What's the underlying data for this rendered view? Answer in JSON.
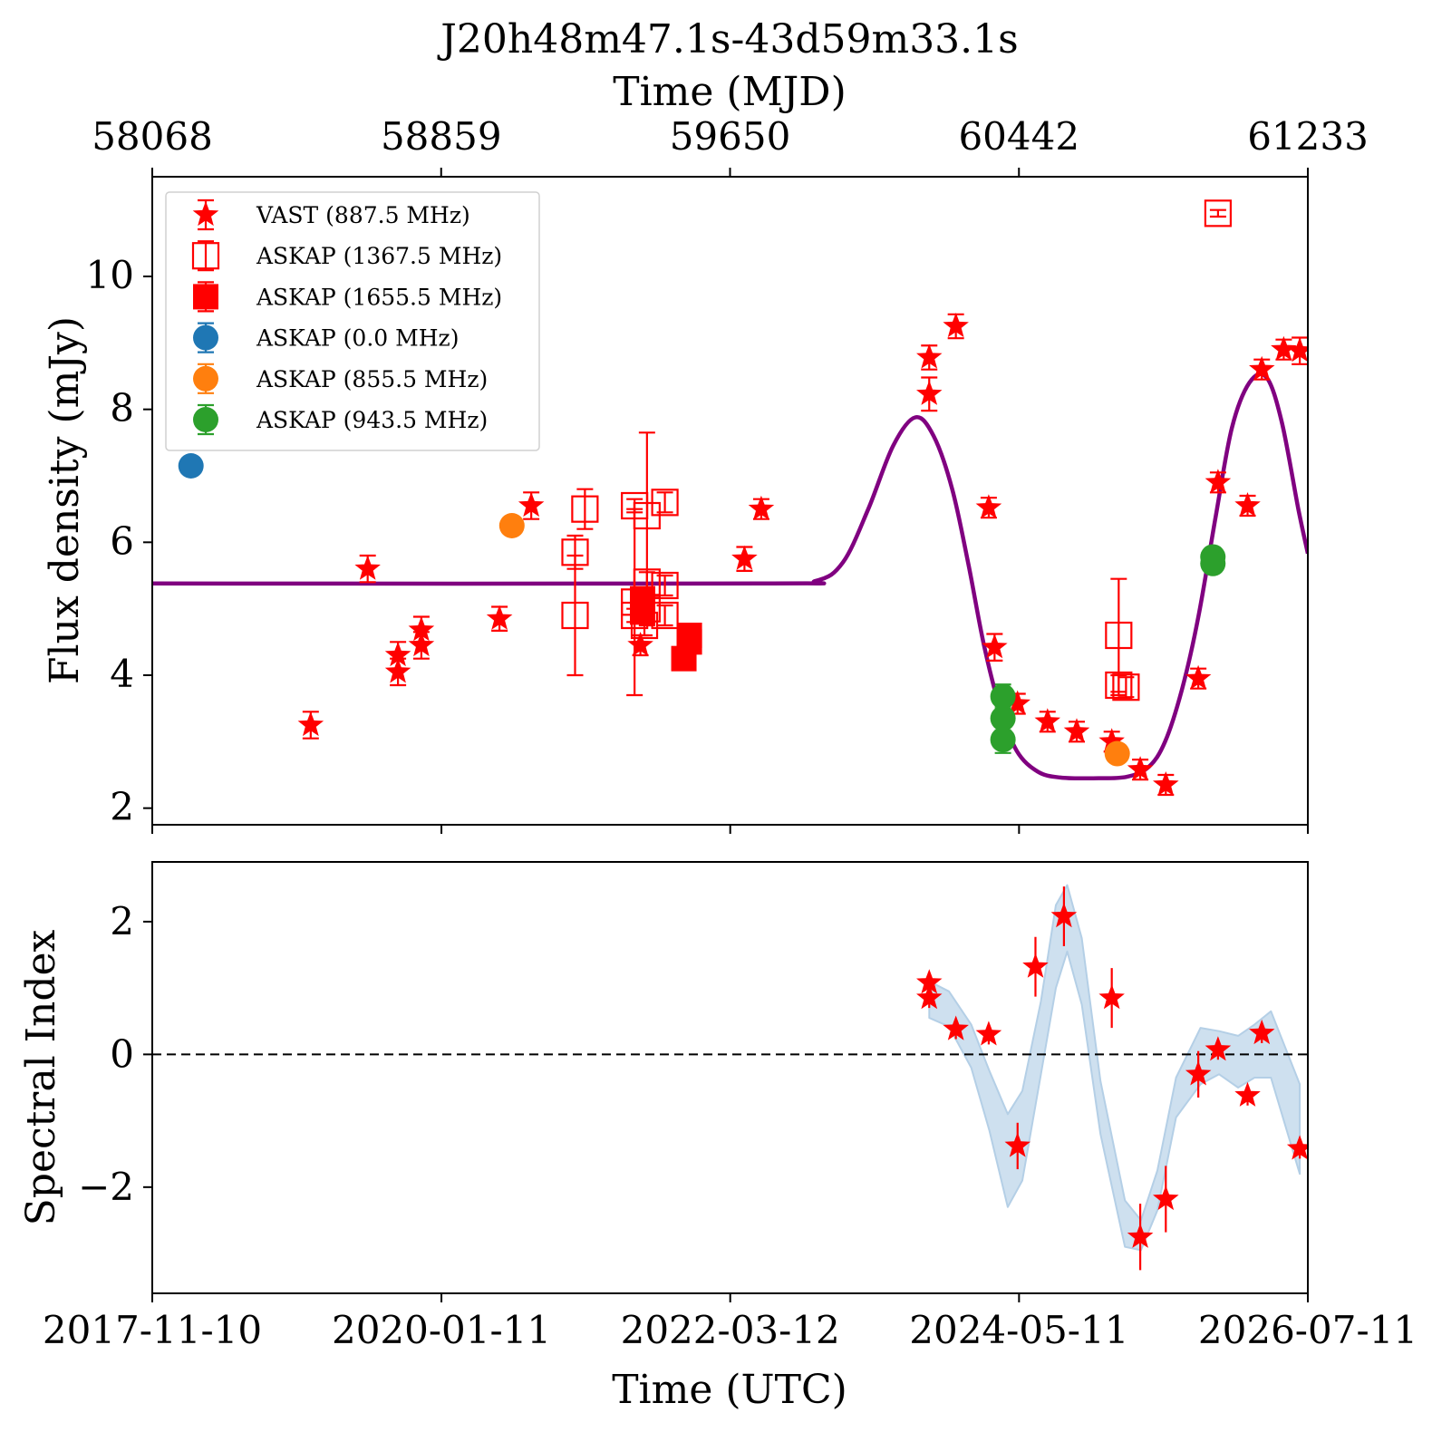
{
  "chart_data": [
    {
      "type": "scatter",
      "title": "J20h48m47.1s-43d59m33.1s",
      "top_axis_label": "Time (MJD)",
      "top_ticks": [
        "58068",
        "58859",
        "59650",
        "60442",
        "61233"
      ],
      "ylabel": "Flux density (mJy)",
      "xlim": [
        "2017-11-10",
        "2026-07-11"
      ],
      "ylim": [
        1.75,
        11.5
      ],
      "yticks": [
        2,
        4,
        6,
        8,
        10
      ],
      "grid": false,
      "legend_position": "upper-left",
      "series": [
        {
          "name": "VAST (887.5 MHz)",
          "marker": "star",
          "color": "#ff0000",
          "points": [
            {
              "x": "2019-01-18",
              "y": 3.25,
              "err": 0.2
            },
            {
              "x": "2019-06-23",
              "y": 5.6,
              "err": 0.2
            },
            {
              "x": "2019-09-14",
              "y": 4.3,
              "err": 0.2
            },
            {
              "x": "2019-09-14",
              "y": 4.05,
              "err": 0.2
            },
            {
              "x": "2019-11-17",
              "y": 4.68,
              "err": 0.2
            },
            {
              "x": "2019-11-17",
              "y": 4.45,
              "err": 0.2
            },
            {
              "x": "2020-06-18",
              "y": 4.85,
              "err": 0.18
            },
            {
              "x": "2020-09-13",
              "y": 6.55,
              "err": 0.2
            },
            {
              "x": "2021-07-09",
              "y": 4.45,
              "err": 0.15
            },
            {
              "x": "2022-04-20",
              "y": 5.75,
              "err": 0.18
            },
            {
              "x": "2022-06-05",
              "y": 6.5,
              "err": 0.15
            },
            {
              "x": "2023-09-08",
              "y": 8.78,
              "err": 0.18
            },
            {
              "x": "2023-09-08",
              "y": 8.23,
              "err": 0.25
            },
            {
              "x": "2023-11-20",
              "y": 9.25,
              "err": 0.18
            },
            {
              "x": "2024-02-18",
              "y": 6.52,
              "err": 0.15
            },
            {
              "x": "2024-03-05",
              "y": 4.42,
              "err": 0.2
            },
            {
              "x": "2024-05-07",
              "y": 3.57,
              "err": 0.15
            },
            {
              "x": "2024-07-28",
              "y": 3.3,
              "err": 0.15
            },
            {
              "x": "2024-10-16",
              "y": 3.15,
              "err": 0.15
            },
            {
              "x": "2025-01-20",
              "y": 3.0,
              "err": 0.15
            },
            {
              "x": "2025-04-08",
              "y": 2.58,
              "err": 0.15
            },
            {
              "x": "2025-06-17",
              "y": 2.35,
              "err": 0.15
            },
            {
              "x": "2025-09-14",
              "y": 3.95,
              "err": 0.15
            },
            {
              "x": "2025-11-07",
              "y": 6.9,
              "err": 0.15
            },
            {
              "x": "2026-01-27",
              "y": 6.55,
              "err": 0.15
            },
            {
              "x": "2026-03-07",
              "y": 8.6,
              "err": 0.15
            },
            {
              "x": "2026-05-06",
              "y": 8.9,
              "err": 0.15
            },
            {
              "x": "2026-06-19",
              "y": 8.88,
              "err": 0.2
            }
          ]
        },
        {
          "name": "ASKAP (1367.5 MHz)",
          "marker": "open-square",
          "color": "#ff0000",
          "points": [
            {
              "x": "2021-01-11",
              "y": 5.85,
              "err": 0.25
            },
            {
              "x": "2021-01-11",
              "y": 4.9,
              "err": 0.9
            },
            {
              "x": "2021-02-07",
              "y": 6.5,
              "err": 0.3
            },
            {
              "x": "2021-06-23",
              "y": 6.55,
              "err": 0.1
            },
            {
              "x": "2021-06-23",
              "y": 5.1,
              "err": 1.4
            },
            {
              "x": "2021-06-23",
              "y": 4.9,
              "err": 0.1
            },
            {
              "x": "2021-07-20",
              "y": 4.75,
              "err": 0.15
            },
            {
              "x": "2021-07-27",
              "y": 5.4,
              "err": 0.15
            },
            {
              "x": "2021-07-27",
              "y": 6.4,
              "err": 1.25
            },
            {
              "x": "2021-07-27",
              "y": 5.0,
              "err": 0.25
            },
            {
              "x": "2021-09-14",
              "y": 6.6,
              "err": 0.15
            },
            {
              "x": "2021-09-14",
              "y": 5.35,
              "err": 0.15
            },
            {
              "x": "2021-09-14",
              "y": 4.9,
              "err": 0.15
            },
            {
              "x": "2025-02-08",
              "y": 4.6,
              "err": 0.85
            },
            {
              "x": "2025-02-08",
              "y": 3.85,
              "err": 0.15
            },
            {
              "x": "2025-02-28",
              "y": 3.82,
              "err": 0.15
            },
            {
              "x": "2025-11-07",
              "y": 10.95,
              "err": 0.05
            }
          ]
        },
        {
          "name": "ASKAP (1655.5 MHz)",
          "marker": "filled-square",
          "color": "#ff0000",
          "points": [
            {
              "x": "2021-07-15",
              "y": 5.15,
              "err": 0.1
            },
            {
              "x": "2021-07-15",
              "y": 4.95,
              "err": 0.1
            },
            {
              "x": "2021-11-05",
              "y": 4.25,
              "err": 0.1
            },
            {
              "x": "2021-11-20",
              "y": 4.6,
              "err": 0.1
            },
            {
              "x": "2021-11-20",
              "y": 4.5,
              "err": 0.1
            }
          ]
        },
        {
          "name": "ASKAP (0.0 MHz)",
          "marker": "circle",
          "color": "#1f77b4",
          "points": [
            {
              "x": "2018-02-24",
              "y": 7.15,
              "err": 0.1
            }
          ]
        },
        {
          "name": "ASKAP (855.5 MHz)",
          "marker": "circle",
          "color": "#ff7f0e",
          "points": [
            {
              "x": "2020-07-22",
              "y": 6.25,
              "err": 0.12
            },
            {
              "x": "2025-02-04",
              "y": 2.82,
              "err": 0.1
            }
          ]
        },
        {
          "name": "ASKAP (943.5 MHz)",
          "marker": "circle",
          "color": "#2ca02c",
          "points": [
            {
              "x": "2024-03-28",
              "y": 3.68,
              "err": 0.18
            },
            {
              "x": "2024-03-28",
              "y": 3.35,
              "err": 0.18
            },
            {
              "x": "2024-03-28",
              "y": 3.03,
              "err": 0.2
            },
            {
              "x": "2025-10-24",
              "y": 5.78,
              "err": 0.12
            },
            {
              "x": "2025-10-24",
              "y": 5.68,
              "err": 0.1
            }
          ]
        }
      ],
      "model_curve": {
        "color": "#800080",
        "points": [
          [
            "2017-11-10",
            5.38
          ],
          [
            "2022-06-01",
            5.38
          ],
          [
            "2022-11-01",
            5.42
          ],
          [
            "2023-01-15",
            5.7
          ],
          [
            "2023-03-25",
            6.5
          ],
          [
            "2023-06-01",
            7.45
          ],
          [
            "2023-08-01",
            7.88
          ],
          [
            "2023-09-20",
            7.6
          ],
          [
            "2023-11-10",
            6.8
          ],
          [
            "2023-12-25",
            5.65
          ],
          [
            "2024-02-05",
            4.45
          ],
          [
            "2024-03-20",
            3.5
          ],
          [
            "2024-05-05",
            2.86
          ],
          [
            "2024-07-01",
            2.55
          ],
          [
            "2024-09-01",
            2.46
          ],
          [
            "2024-12-01",
            2.45
          ],
          [
            "2025-03-01",
            2.47
          ],
          [
            "2025-05-01",
            2.62
          ],
          [
            "2025-06-15",
            3.0
          ],
          [
            "2025-08-01",
            3.8
          ],
          [
            "2025-09-15",
            4.9
          ],
          [
            "2025-11-01",
            6.4
          ],
          [
            "2025-12-15",
            7.72
          ],
          [
            "2026-02-01",
            8.4
          ],
          [
            "2026-03-20",
            8.48
          ],
          [
            "2026-05-01",
            7.8
          ],
          [
            "2026-06-15",
            6.5
          ],
          [
            "2026-07-11",
            5.83
          ]
        ]
      }
    },
    {
      "type": "scatter",
      "xlabel": "Time (UTC)",
      "ylabel": "Spectral Index",
      "xlim": [
        "2017-11-10",
        "2026-07-11"
      ],
      "xticks": [
        "2017-11-10",
        "2020-01-11",
        "2022-03-12",
        "2024-05-11",
        "2026-07-11"
      ],
      "ylim": [
        -3.6,
        2.9
      ],
      "yticks": [
        -2,
        0,
        2
      ],
      "yticks_labels": [
        "−2",
        "0",
        "2"
      ],
      "reference_line": {
        "y": 0,
        "style": "dashed",
        "color": "#000000"
      },
      "series": [
        {
          "marker": "star",
          "color": "#ff0000",
          "points": [
            {
              "x": "2023-09-08",
              "y": 1.08,
              "err": 0.15
            },
            {
              "x": "2023-09-08",
              "y": 0.85,
              "err": 0.15
            },
            {
              "x": "2023-11-20",
              "y": 0.38,
              "err": 0.15
            },
            {
              "x": "2024-02-18",
              "y": 0.3,
              "err": 0.15
            },
            {
              "x": "2024-05-07",
              "y": -1.38,
              "err": 0.35
            },
            {
              "x": "2024-06-25",
              "y": 1.32,
              "err": 0.45
            },
            {
              "x": "2024-09-11",
              "y": 2.08,
              "err": 0.45
            },
            {
              "x": "2025-01-20",
              "y": 0.85,
              "err": 0.45
            },
            {
              "x": "2025-04-08",
              "y": -2.75,
              "err": 0.5
            },
            {
              "x": "2025-06-17",
              "y": -2.18,
              "err": 0.5
            },
            {
              "x": "2025-09-14",
              "y": -0.3,
              "err": 0.35
            },
            {
              "x": "2025-11-07",
              "y": 0.07,
              "err": 0.15
            },
            {
              "x": "2026-01-27",
              "y": -0.62,
              "err": 0.15
            },
            {
              "x": "2026-03-07",
              "y": 0.32,
              "err": 0.15
            },
            {
              "x": "2026-06-19",
              "y": -1.42,
              "err": 0.15
            }
          ]
        }
      ],
      "confidence_band": {
        "color": "#b4cfe6",
        "points": [
          [
            "2023-09-08",
            1.1,
            0.55
          ],
          [
            "2023-11-01",
            0.95,
            0.42
          ],
          [
            "2024-01-01",
            0.45,
            -0.2
          ],
          [
            "2024-02-20",
            -0.25,
            -1.15
          ],
          [
            "2024-04-10",
            -0.9,
            -2.3
          ],
          [
            "2024-05-20",
            -0.55,
            -1.9
          ],
          [
            "2024-07-10",
            0.8,
            -0.3
          ],
          [
            "2024-08-20",
            2.25,
            1.0
          ],
          [
            "2024-09-20",
            2.55,
            1.55
          ],
          [
            "2024-10-30",
            1.75,
            0.75
          ],
          [
            "2024-12-20",
            -0.4,
            -1.2
          ],
          [
            "2025-02-25",
            -2.2,
            -2.9
          ],
          [
            "2025-04-10",
            -2.5,
            -2.95
          ],
          [
            "2025-05-25",
            -1.75,
            -2.35
          ],
          [
            "2025-07-15",
            -0.35,
            -0.95
          ],
          [
            "2025-09-20",
            0.4,
            -0.45
          ],
          [
            "2025-11-10",
            0.35,
            -0.3
          ],
          [
            "2026-01-01",
            0.28,
            -0.5
          ],
          [
            "2026-02-15",
            0.45,
            -0.35
          ],
          [
            "2026-04-01",
            0.65,
            -0.35
          ],
          [
            "2026-06-19",
            -0.45,
            -1.8
          ]
        ]
      }
    }
  ]
}
